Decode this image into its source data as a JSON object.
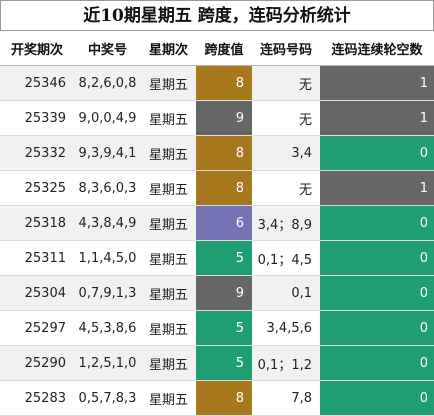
{
  "title": "近10期星期五 跨度，连码分析统计",
  "headers": [
    "开奖期次",
    "中奖号",
    "星期次",
    "跨度值",
    "连码号码",
    "连码连续轮空数"
  ],
  "colors": {
    "gold": "#a8781c",
    "gray": "#666666",
    "green": "#1e9e72",
    "purple": "#7672b6"
  },
  "rows": [
    {
      "issue": "25346",
      "numbers": "8,2,6,0,8",
      "weekday": "星期五",
      "span": "8",
      "span_color": "gold",
      "lian": "无",
      "miss": "1",
      "miss_color": "gray"
    },
    {
      "issue": "25339",
      "numbers": "9,0,0,4,9",
      "weekday": "星期五",
      "span": "9",
      "span_color": "gray",
      "lian": "无",
      "miss": "1",
      "miss_color": "gray"
    },
    {
      "issue": "25332",
      "numbers": "9,3,9,4,1",
      "weekday": "星期五",
      "span": "8",
      "span_color": "gold",
      "lian": "3,4",
      "miss": "0",
      "miss_color": "green"
    },
    {
      "issue": "25325",
      "numbers": "8,3,6,0,3",
      "weekday": "星期五",
      "span": "8",
      "span_color": "gold",
      "lian": "无",
      "miss": "1",
      "miss_color": "gray"
    },
    {
      "issue": "25318",
      "numbers": "4,3,8,4,9",
      "weekday": "星期五",
      "span": "6",
      "span_color": "purple",
      "lian": "3,4；8,9",
      "miss": "0",
      "miss_color": "green"
    },
    {
      "issue": "25311",
      "numbers": "1,1,4,5,0",
      "weekday": "星期五",
      "span": "5",
      "span_color": "green",
      "lian": "0,1；4,5",
      "miss": "0",
      "miss_color": "green"
    },
    {
      "issue": "25304",
      "numbers": "0,7,9,1,3",
      "weekday": "星期五",
      "span": "9",
      "span_color": "gray",
      "lian": "0,1",
      "miss": "0",
      "miss_color": "green"
    },
    {
      "issue": "25297",
      "numbers": "4,5,3,8,6",
      "weekday": "星期五",
      "span": "5",
      "span_color": "green",
      "lian": "3,4,5,6",
      "miss": "0",
      "miss_color": "green"
    },
    {
      "issue": "25290",
      "numbers": "1,2,5,1,0",
      "weekday": "星期五",
      "span": "5",
      "span_color": "green",
      "lian": "0,1；1,2",
      "miss": "0",
      "miss_color": "green"
    },
    {
      "issue": "25283",
      "numbers": "0,5,7,8,3",
      "weekday": "星期五",
      "span": "8",
      "span_color": "gold",
      "lian": "7,8",
      "miss": "0",
      "miss_color": "green"
    }
  ]
}
